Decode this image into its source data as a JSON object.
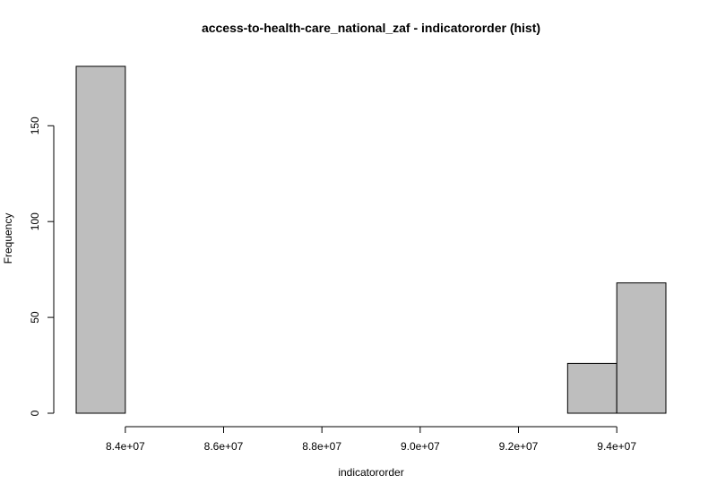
{
  "chart_data": {
    "type": "bar",
    "subtype": "histogram",
    "title": "access-to-health-care_national_zaf - indicatororder (hist)",
    "xlabel": "indicatororder",
    "ylabel": "Frequency",
    "bins": [
      {
        "start": 83000000,
        "end": 84000000,
        "count": 181
      },
      {
        "start": 84000000,
        "end": 85000000,
        "count": 0
      },
      {
        "start": 85000000,
        "end": 86000000,
        "count": 0
      },
      {
        "start": 86000000,
        "end": 87000000,
        "count": 0
      },
      {
        "start": 87000000,
        "end": 88000000,
        "count": 0
      },
      {
        "start": 88000000,
        "end": 89000000,
        "count": 0
      },
      {
        "start": 89000000,
        "end": 90000000,
        "count": 0
      },
      {
        "start": 90000000,
        "end": 91000000,
        "count": 0
      },
      {
        "start": 91000000,
        "end": 92000000,
        "count": 0
      },
      {
        "start": 92000000,
        "end": 93000000,
        "count": 0
      },
      {
        "start": 93000000,
        "end": 94000000,
        "count": 26
      },
      {
        "start": 94000000,
        "end": 95000000,
        "count": 68
      }
    ],
    "xlim": [
      83000000,
      95000000
    ],
    "ylim": [
      0,
      181
    ],
    "x_ticks": [
      84000000,
      86000000,
      88000000,
      90000000,
      92000000,
      94000000
    ],
    "x_tick_labels": [
      "8.4e+07",
      "8.6e+07",
      "8.8e+07",
      "9.0e+07",
      "9.2e+07",
      "9.4e+07"
    ],
    "y_ticks": [
      0,
      50,
      100,
      150
    ],
    "y_tick_labels": [
      "0",
      "50",
      "100",
      "150"
    ],
    "bar_fill": "#bebebe",
    "bar_stroke": "#000000",
    "grid": false,
    "legend": "none"
  }
}
